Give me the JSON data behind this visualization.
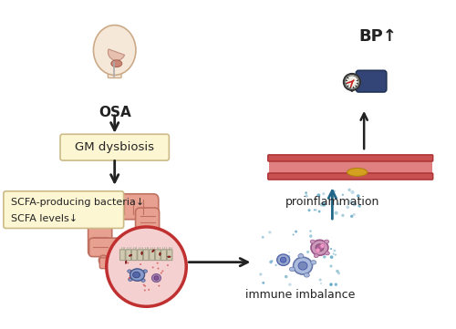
{
  "bg_color": "#ffffff",
  "title": "",
  "osa_label": "OSA",
  "gm_box_label": "GM dysbiosis",
  "scfa_label1": "SCFA-producing bacteria↓",
  "scfa_label2": "SCFA levels↓",
  "proinflammation_label": "proinflammation",
  "immune_label": "immune imbalance",
  "bp_label": "BP↑",
  "gm_box_color": "#fdf6d3",
  "scfa_box_color": "#fdf6d3",
  "gut_color": "#e8a090",
  "gut_inner_color": "#f0c0b0",
  "circle_inset_color": "#f5d0d0",
  "circle_border_color": "#c03030",
  "arrow_color": "#222222",
  "arrow_color2": "#226688",
  "vessel_top_color": "#c85050",
  "vessel_bottom_color": "#c85050",
  "vessel_fill": "#d06060",
  "plaque_color": "#d4a020",
  "bp_arrow_color": "#222222",
  "dot_colors": [
    "#4499bb",
    "#aaccdd",
    "#88bbcc"
  ],
  "cell_colors": [
    "#aabbdd",
    "#cc99bb",
    "#99aacc"
  ],
  "bacteria_color": "#992222",
  "epithelial_color": "#d0c8b0",
  "immune_cell_color": "#8899cc"
}
